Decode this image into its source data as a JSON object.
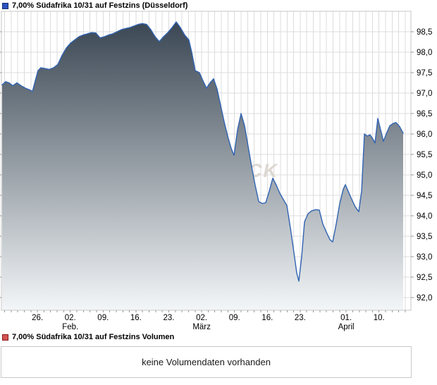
{
  "legend_top": {
    "label": "7,00% Südafrika 10/31 auf Festzins (Düsseldorf)",
    "marker_fill": "#2d52bf",
    "marker_border": "#16326e"
  },
  "legend_bottom": {
    "label": "7,00% Südafrika 10/31 auf Festzins Volumen",
    "marker_fill": "#d25353",
    "marker_border": "#8c1c1c"
  },
  "volume_box": {
    "message": "keine Volumendaten vorhanden"
  },
  "chart_data": {
    "type": "area",
    "title": "7,00% Südafrika 10/31 auf Festzins (Düsseldorf)",
    "watermark_visible_text": "CK",
    "line_color": "#3163b1",
    "fill_top": "#33404d",
    "fill_bottom": "#f3f6f8",
    "grid_color": "#dcdcdc",
    "border_color": "#c6c6c6",
    "tick_color": "#9a9a9a",
    "ylim": [
      91.69,
      99.0
    ],
    "legend_position": "top-left",
    "grid": "on",
    "y_ticks": [
      {
        "value": 98.5,
        "label": "98,5"
      },
      {
        "value": 98.0,
        "label": "98,0"
      },
      {
        "value": 97.5,
        "label": "97,5"
      },
      {
        "value": 97.0,
        "label": "97,0"
      },
      {
        "value": 96.5,
        "label": "96,5"
      },
      {
        "value": 96.0,
        "label": "96,0"
      },
      {
        "value": 95.5,
        "label": "95,5"
      },
      {
        "value": 95.0,
        "label": "95,0"
      },
      {
        "value": 94.5,
        "label": "94,5"
      },
      {
        "value": 94.0,
        "label": "94,0"
      },
      {
        "value": 93.5,
        "label": "93,5"
      },
      {
        "value": 93.0,
        "label": "93,0"
      },
      {
        "value": 92.5,
        "label": "92,5"
      },
      {
        "value": 92.0,
        "label": "92,0"
      }
    ],
    "x_grid": {
      "start": 6.5,
      "step": 9.32,
      "count": 62
    },
    "x_ticks": [
      {
        "n": 5,
        "label": "26."
      },
      {
        "n": 10,
        "label": "02.",
        "sub": "Feb."
      },
      {
        "n": 15,
        "label": "09."
      },
      {
        "n": 20,
        "label": "16."
      },
      {
        "n": 25,
        "label": "23."
      },
      {
        "n": 30,
        "label": "02.",
        "sub": "März"
      },
      {
        "n": 35,
        "label": "09."
      },
      {
        "n": 40,
        "label": "16."
      },
      {
        "n": 45,
        "label": "23."
      },
      {
        "n": 52,
        "label": "01.",
        "sub": "April"
      },
      {
        "n": 57,
        "label": "10."
      }
    ],
    "points": [
      [
        3,
        97.2
      ],
      [
        8,
        97.28
      ],
      [
        13,
        97.25
      ],
      [
        18,
        97.18
      ],
      [
        24,
        97.25
      ],
      [
        30,
        97.18
      ],
      [
        36,
        97.12
      ],
      [
        42,
        97.08
      ],
      [
        46,
        97.04
      ],
      [
        50,
        97.3
      ],
      [
        54,
        97.55
      ],
      [
        58,
        97.62
      ],
      [
        64,
        97.6
      ],
      [
        70,
        97.58
      ],
      [
        76,
        97.62
      ],
      [
        82,
        97.7
      ],
      [
        88,
        97.92
      ],
      [
        94,
        98.1
      ],
      [
        100,
        98.22
      ],
      [
        106,
        98.3
      ],
      [
        112,
        98.38
      ],
      [
        118,
        98.42
      ],
      [
        124,
        98.45
      ],
      [
        130,
        98.48
      ],
      [
        136,
        98.47
      ],
      [
        142,
        98.35
      ],
      [
        148,
        98.38
      ],
      [
        154,
        98.42
      ],
      [
        160,
        98.45
      ],
      [
        166,
        98.5
      ],
      [
        172,
        98.55
      ],
      [
        178,
        98.58
      ],
      [
        184,
        98.6
      ],
      [
        190,
        98.64
      ],
      [
        196,
        98.68
      ],
      [
        202,
        98.7
      ],
      [
        208,
        98.68
      ],
      [
        214,
        98.55
      ],
      [
        220,
        98.38
      ],
      [
        226,
        98.26
      ],
      [
        232,
        98.38
      ],
      [
        238,
        98.48
      ],
      [
        244,
        98.6
      ],
      [
        250,
        98.74
      ],
      [
        256,
        98.6
      ],
      [
        262,
        98.42
      ],
      [
        268,
        98.3
      ],
      [
        272,
        98.0
      ],
      [
        277,
        97.55
      ],
      [
        283,
        97.5
      ],
      [
        288,
        97.3
      ],
      [
        293,
        97.12
      ],
      [
        298,
        97.25
      ],
      [
        303,
        97.35
      ],
      [
        308,
        97.1
      ],
      [
        313,
        96.7
      ],
      [
        318,
        96.3
      ],
      [
        323,
        95.95
      ],
      [
        328,
        95.65
      ],
      [
        332,
        95.48
      ],
      [
        337,
        96.1
      ],
      [
        342,
        96.5
      ],
      [
        347,
        96.2
      ],
      [
        352,
        95.7
      ],
      [
        357,
        95.2
      ],
      [
        362,
        94.75
      ],
      [
        367,
        94.35
      ],
      [
        372,
        94.3
      ],
      [
        377,
        94.32
      ],
      [
        382,
        94.6
      ],
      [
        387,
        94.92
      ],
      [
        392,
        94.75
      ],
      [
        397,
        94.55
      ],
      [
        402,
        94.4
      ],
      [
        407,
        94.25
      ],
      [
        412,
        93.7
      ],
      [
        417,
        93.1
      ],
      [
        421,
        92.6
      ],
      [
        424,
        92.4
      ],
      [
        428,
        93.0
      ],
      [
        432,
        93.85
      ],
      [
        437,
        94.05
      ],
      [
        442,
        94.12
      ],
      [
        448,
        94.15
      ],
      [
        453,
        94.14
      ],
      [
        458,
        93.8
      ],
      [
        463,
        93.6
      ],
      [
        468,
        93.42
      ],
      [
        472,
        93.36
      ],
      [
        477,
        93.8
      ],
      [
        482,
        94.3
      ],
      [
        487,
        94.65
      ],
      [
        490,
        94.76
      ],
      [
        494,
        94.6
      ],
      [
        499,
        94.4
      ],
      [
        504,
        94.22
      ],
      [
        509,
        94.1
      ],
      [
        513,
        94.6
      ],
      [
        517,
        96.0
      ],
      [
        521,
        95.95
      ],
      [
        525,
        95.98
      ],
      [
        529,
        95.88
      ],
      [
        532,
        95.78
      ],
      [
        536,
        96.38
      ],
      [
        540,
        96.1
      ],
      [
        544,
        95.82
      ],
      [
        548,
        96.0
      ],
      [
        553,
        96.2
      ],
      [
        558,
        96.26
      ],
      [
        562,
        96.28
      ],
      [
        567,
        96.18
      ],
      [
        572,
        96.02
      ]
    ]
  }
}
